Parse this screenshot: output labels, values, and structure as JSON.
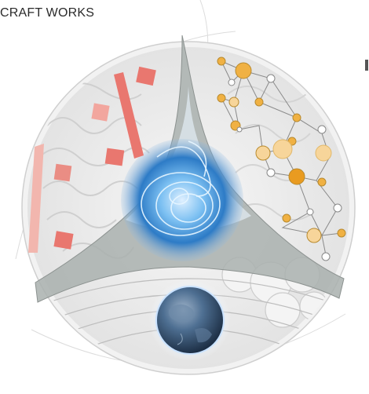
{
  "header": {
    "title": "CRAFT WORKS"
  },
  "illustration": {
    "segments": [
      "brain-left",
      "network-right",
      "earth-bottom",
      "energy-center"
    ],
    "colors": {
      "red_block": "#e9776f",
      "pale_red": "#f2b6ae",
      "orange_node": "#f0b143",
      "pale_orange": "#f7d59a",
      "energy_blue": "#3a8fd6",
      "earth_blue": "#3d5d80",
      "grey_divider": "#a9b0ae"
    }
  }
}
